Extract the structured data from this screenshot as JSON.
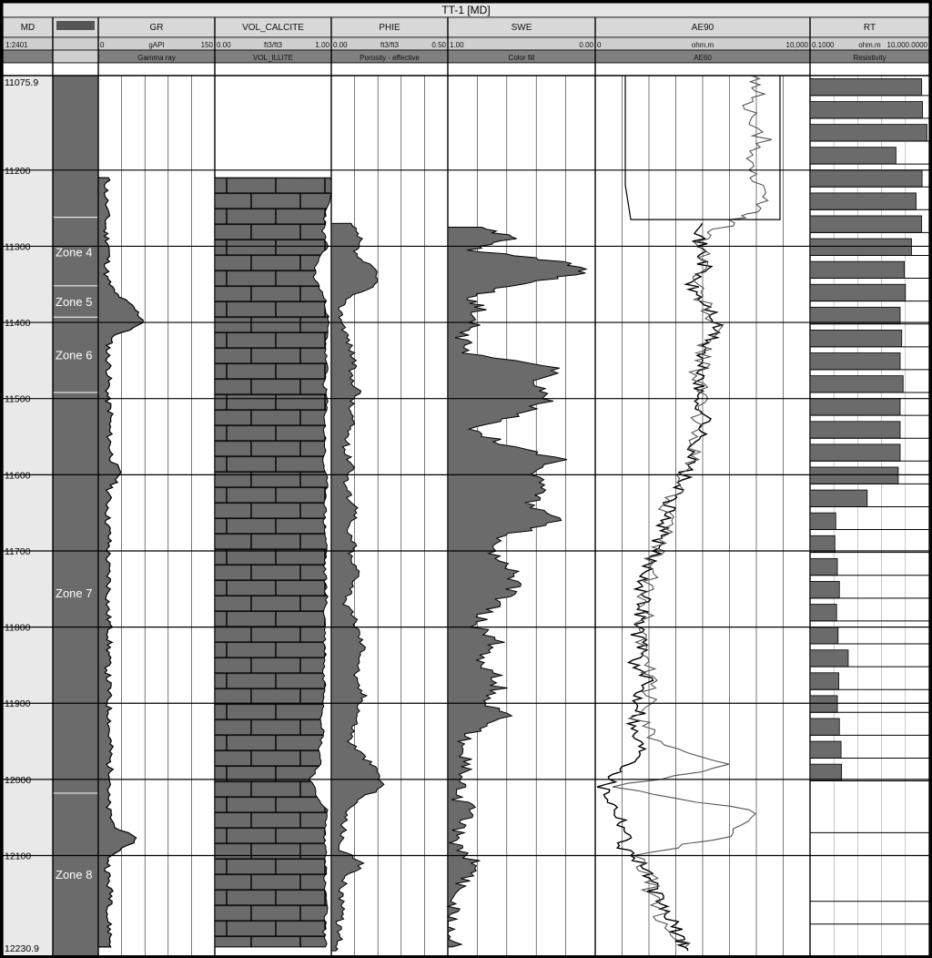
{
  "well_title": "TT-1 [MD]",
  "tracks": [
    {
      "name": "MD",
      "unit_line": "",
      "scale": "1:2401",
      "left": "",
      "right": "",
      "subtitle": ""
    },
    {
      "name": "",
      "unit_line": "",
      "scale": "",
      "left": "",
      "right": "",
      "subtitle": ""
    },
    {
      "name": "GR",
      "unit_line": "gAPI",
      "scale": "",
      "left": "0",
      "right": "150",
      "subtitle": "Gamma ray"
    },
    {
      "name": "VOL_CALCITE",
      "unit_line": "ft3/ft3",
      "scale": "",
      "left": "0.00",
      "right": "1.00",
      "subtitle": "VOL_ILLITE"
    },
    {
      "name": "PHIE",
      "unit_line": "ft3/ft3",
      "scale": "",
      "left": "0.00",
      "right": "0.50",
      "subtitle": "Porosity - effective"
    },
    {
      "name": "SWE",
      "unit_line": "",
      "scale": "",
      "left": "1.00",
      "right": "0.00",
      "subtitle": "Color fill"
    },
    {
      "name": "AE90",
      "unit_line": "ohm.m",
      "scale": "",
      "left": "0",
      "right": "10,000",
      "subtitle": "AE60"
    },
    {
      "name": "RT",
      "unit_line": "ohm.m",
      "scale": "",
      "left": "0.1000",
      "right": "10,000.0000",
      "subtitle": "Resistivity"
    }
  ],
  "depth_labels": [
    "11075.9",
    "11200",
    "11300",
    "11400",
    "11500",
    "11600",
    "11700",
    "11800",
    "11900",
    "12000",
    "12100",
    "12230.9"
  ],
  "zone_labels": [
    "Zone 4",
    "Zone 5",
    "Zone 6",
    "Zone 7",
    "Zone 8"
  ],
  "chart_data": {
    "type": "line",
    "depth_axis": {
      "label": "MD",
      "top": 11075.9,
      "bottom": 12230.9,
      "major_ticks": [
        11200,
        11300,
        11400,
        11500,
        11600,
        11700,
        11800,
        11900,
        12000,
        12100
      ]
    },
    "zones": [
      {
        "name": "Zone 4",
        "top": 11262,
        "base": 11352
      },
      {
        "name": "Zone 5",
        "top": 11352,
        "base": 11393
      },
      {
        "name": "Zone 6",
        "top": 11393,
        "base": 11492
      },
      {
        "name": "Zone 7",
        "top": 11492,
        "base": 12018
      },
      {
        "name": "Zone 8",
        "top": 12018,
        "base": 12230.9
      }
    ],
    "series": [
      {
        "name": "GR",
        "unit": "gAPI",
        "range": [
          0,
          150
        ],
        "depth": [
          11210,
          11230,
          11260,
          11280,
          11300,
          11320,
          11340,
          11360,
          11380,
          11400,
          11420,
          11440,
          11460,
          11480,
          11500,
          11520,
          11540,
          11560,
          11580,
          11600,
          11620,
          11640,
          11660,
          11680,
          11700,
          11720,
          11740,
          11760,
          11780,
          11800,
          11820,
          11840,
          11860,
          11880,
          11900,
          11920,
          11940,
          11960,
          11980,
          12000,
          12020,
          12040,
          12060,
          12080,
          12100,
          12120,
          12140,
          12160,
          12180,
          12200,
          12220
        ],
        "values": [
          12,
          10,
          11,
          9,
          14,
          12,
          10,
          20,
          45,
          60,
          16,
          12,
          14,
          13,
          12,
          16,
          14,
          15,
          18,
          28,
          14,
          13,
          12,
          14,
          13,
          12,
          14,
          13,
          12,
          15,
          14,
          13,
          12,
          14,
          13,
          15,
          14,
          16,
          14,
          18,
          12,
          13,
          20,
          50,
          15,
          12,
          14,
          18,
          12,
          15,
          16
        ]
      },
      {
        "name": "VOL_CALCITE",
        "unit": "ft3/ft3",
        "range": [
          0,
          1
        ],
        "depth": [
          11210,
          11230,
          11260,
          11280,
          11300,
          11320,
          11340,
          11360,
          11380,
          11400,
          11420,
          11440,
          11460,
          11480,
          11500,
          11520,
          11540,
          11560,
          11580,
          11600,
          11620,
          11640,
          11660,
          11680,
          11700,
          11720,
          11740,
          11760,
          11780,
          11800,
          11820,
          11840,
          11860,
          11880,
          11900,
          11920,
          11940,
          11960,
          11980,
          12000,
          12020,
          12040,
          12060,
          12080,
          12100,
          12120,
          12140,
          12160,
          12180,
          12200,
          12220
        ],
        "values": [
          1.0,
          1.0,
          0.95,
          0.93,
          0.96,
          0.88,
          0.85,
          0.92,
          0.96,
          0.97,
          0.96,
          0.95,
          0.96,
          0.94,
          0.96,
          0.95,
          0.94,
          0.95,
          0.93,
          0.95,
          0.96,
          0.95,
          0.94,
          0.95,
          0.96,
          0.94,
          0.95,
          0.96,
          0.94,
          0.95,
          0.94,
          0.95,
          0.93,
          0.95,
          0.94,
          0.92,
          0.93,
          0.9,
          0.91,
          0.82,
          0.87,
          0.96,
          0.95,
          0.94,
          0.96,
          0.95,
          0.94,
          0.96,
          0.95,
          0.94,
          0.95
        ]
      },
      {
        "name": "PHIE",
        "unit": "ft3/ft3",
        "range": [
          0,
          0.5
        ],
        "depth": [
          11270,
          11290,
          11310,
          11330,
          11350,
          11370,
          11390,
          11410,
          11430,
          11450,
          11470,
          11490,
          11510,
          11530,
          11550,
          11570,
          11590,
          11610,
          11630,
          11650,
          11670,
          11690,
          11710,
          11730,
          11750,
          11770,
          11790,
          11810,
          11830,
          11850,
          11870,
          11890,
          11910,
          11930,
          11950,
          11970,
          11990,
          12010,
          12030,
          12050,
          12070,
          12090,
          12110,
          12130,
          12150,
          12170,
          12190,
          12210,
          12225
        ],
        "values": [
          0.08,
          0.12,
          0.1,
          0.18,
          0.2,
          0.05,
          0.04,
          0.06,
          0.08,
          0.1,
          0.08,
          0.12,
          0.08,
          0.09,
          0.07,
          0.06,
          0.1,
          0.06,
          0.08,
          0.12,
          0.06,
          0.1,
          0.08,
          0.12,
          0.09,
          0.06,
          0.1,
          0.12,
          0.14,
          0.12,
          0.1,
          0.14,
          0.12,
          0.1,
          0.08,
          0.14,
          0.2,
          0.22,
          0.1,
          0.06,
          0.05,
          0.02,
          0.14,
          0.06,
          0.04,
          0.06,
          0.03,
          0.04,
          0.02
        ]
      },
      {
        "name": "SWE",
        "unit": "",
        "range": [
          1,
          0
        ],
        "depth": [
          11275,
          11290,
          11305,
          11320,
          11335,
          11350,
          11365,
          11380,
          11400,
          11420,
          11440,
          11460,
          11480,
          11500,
          11520,
          11540,
          11560,
          11580,
          11600,
          11620,
          11640,
          11660,
          11680,
          11700,
          11720,
          11740,
          11760,
          11780,
          11800,
          11820,
          11840,
          11860,
          11880,
          11900,
          11920,
          11940,
          11960,
          11980,
          12000,
          12020,
          12040,
          12060,
          12080,
          12100,
          12120,
          12140,
          12160,
          12180,
          12200,
          12220
        ],
        "values": [
          0.8,
          0.55,
          0.82,
          0.25,
          0.05,
          0.5,
          0.85,
          0.78,
          0.8,
          0.9,
          0.85,
          0.25,
          0.4,
          0.3,
          0.5,
          0.88,
          0.6,
          0.25,
          0.4,
          0.3,
          0.45,
          0.25,
          0.6,
          0.7,
          0.58,
          0.55,
          0.6,
          0.75,
          0.8,
          0.65,
          0.78,
          0.7,
          0.65,
          0.75,
          0.6,
          0.85,
          0.9,
          0.88,
          0.92,
          0.95,
          0.85,
          0.93,
          0.96,
          0.85,
          0.8,
          0.92,
          0.94,
          0.98,
          0.95,
          0.97
        ]
      },
      {
        "name": "AE90",
        "unit": "ohm.m",
        "range": [
          0,
          10000
        ],
        "depth": [
          11270,
          11290,
          11310,
          11330,
          11350,
          11370,
          11390,
          11410,
          11430,
          11450,
          11470,
          11490,
          11510,
          11530,
          11550,
          11570,
          11590,
          11610,
          11630,
          11650,
          11670,
          11690,
          11710,
          11730,
          11750,
          11770,
          11790,
          11810,
          11830,
          11850,
          11870,
          11890,
          11910,
          11930,
          11950,
          11970,
          11990,
          12010,
          12030,
          12050,
          12070,
          12090,
          12110,
          12130,
          12150,
          12170,
          12190,
          12210,
          12225
        ],
        "values": [
          5300,
          4800,
          5000,
          5100,
          4400,
          4900,
          5500,
          5600,
          5200,
          4800,
          5000,
          4700,
          4900,
          5200,
          4800,
          4600,
          4300,
          4000,
          3600,
          3300,
          3200,
          2900,
          2600,
          2400,
          2200,
          2300,
          2100,
          2000,
          2300,
          1800,
          2400,
          2000,
          2200,
          1700,
          2000,
          2300,
          1200,
          400,
          800,
          1200,
          1500,
          1300,
          2200,
          2500,
          2800,
          3200,
          3600,
          4000,
          4300
        ]
      },
      {
        "name": "AE60",
        "unit": "ohm.m",
        "range": [
          0,
          10000
        ],
        "depth": [
          11075.9,
          11100,
          11130,
          11160,
          11190,
          11220,
          11250,
          11265,
          11290,
          11320,
          11350,
          11380,
          11410,
          11440,
          11470,
          11500,
          11530,
          11560,
          11590,
          11620,
          11650,
          11680,
          11710,
          11740,
          11770,
          11800,
          11830,
          11860,
          11890,
          11920,
          11950,
          11980,
          12010,
          12040,
          12070,
          12100,
          12130,
          12160,
          12190,
          12220
        ],
        "values": [
          7200,
          7600,
          7000,
          7800,
          7300,
          7500,
          7900,
          6500,
          5000,
          5200,
          4600,
          5200,
          5600,
          5000,
          4800,
          5000,
          4600,
          4800,
          4200,
          3800,
          3300,
          3100,
          2700,
          2500,
          2300,
          2300,
          2200,
          2400,
          2600,
          2000,
          2700,
          6500,
          1000,
          7200,
          6800,
          1800,
          2500,
          2700,
          3300,
          4200
        ]
      },
      {
        "name": "RT",
        "unit": "ohm.m",
        "range": [
          0.1,
          10000
        ],
        "scale": "log",
        "depth": [
          11090,
          11120,
          11150,
          11180,
          11210,
          11240,
          11270,
          11300,
          11330,
          11360,
          11390,
          11420,
          11450,
          11480,
          11510,
          11540,
          11570,
          11600,
          11630,
          11660,
          11690,
          11720,
          11750,
          11780,
          11810,
          11840,
          11870,
          11900,
          11930,
          11960,
          11990
        ],
        "values": [
          4800,
          5200,
          8000,
          400,
          5000,
          2800,
          4800,
          1800,
          900,
          1000,
          600,
          700,
          600,
          800,
          600,
          600,
          600,
          500,
          25,
          1.2,
          1.1,
          1.4,
          1.7,
          1.3,
          1.5,
          4,
          1.6,
          1.4,
          1.7,
          2,
          2.1
        ]
      },
      {
        "name": "DEPTH_SHADE",
        "unit": "",
        "range": [
          0,
          1
        ],
        "depth": [],
        "values": []
      }
    ]
  }
}
